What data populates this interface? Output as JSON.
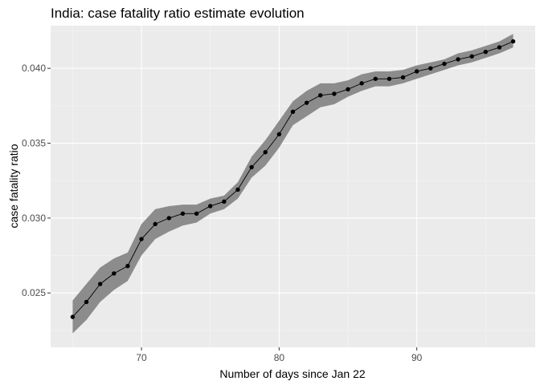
{
  "chart_data": {
    "type": "line",
    "title": "India: case fatality ratio estimate evolution",
    "xlabel": "Number of days since Jan 22",
    "ylabel": "case fatality ratio",
    "x_ticks": [
      70,
      80,
      90
    ],
    "y_ticks": [
      0.025,
      0.03,
      0.035,
      0.04
    ],
    "y_tick_labels": [
      "0.025",
      "0.030",
      "0.035",
      "0.040"
    ],
    "xlim": [
      63.4,
      98.6
    ],
    "ylim": [
      0.02137,
      0.04285
    ],
    "grid": true,
    "legend": "none",
    "colors": {
      "panel": "#ebebeb",
      "grid_major": "#ffffff",
      "grid_minor": "#f5f5f5",
      "ribbon": "#8c8c8c",
      "line": "#000000"
    },
    "series": [
      {
        "x": [
          65,
          66,
          67,
          68,
          69,
          70,
          71,
          72,
          73,
          74,
          75,
          76,
          77,
          78,
          79,
          80,
          81,
          82,
          83,
          84,
          85,
          86,
          87,
          88,
          89,
          90,
          91,
          92,
          93,
          94,
          95,
          96,
          97
        ],
        "y": [
          0.0234,
          0.0244,
          0.0256,
          0.0263,
          0.0268,
          0.0286,
          0.0296,
          0.03,
          0.0303,
          0.0303,
          0.0308,
          0.0311,
          0.0319,
          0.0334,
          0.0344,
          0.0356,
          0.0371,
          0.0377,
          0.0382,
          0.0383,
          0.0386,
          0.039,
          0.0393,
          0.0393,
          0.0394,
          0.0398,
          0.04,
          0.0403,
          0.0406,
          0.0408,
          0.0411,
          0.0414,
          0.0418
        ],
        "lower": [
          0.0223,
          0.0232,
          0.0244,
          0.0252,
          0.0258,
          0.0275,
          0.0286,
          0.0291,
          0.0295,
          0.0297,
          0.0303,
          0.0306,
          0.0313,
          0.0327,
          0.0335,
          0.0347,
          0.0362,
          0.0368,
          0.0374,
          0.0376,
          0.0381,
          0.0385,
          0.0388,
          0.0388,
          0.039,
          0.0393,
          0.0396,
          0.0399,
          0.0402,
          0.0404,
          0.0407,
          0.041,
          0.0414
        ],
        "upper": [
          0.0245,
          0.0256,
          0.0267,
          0.0273,
          0.0277,
          0.0296,
          0.0306,
          0.0308,
          0.0309,
          0.0309,
          0.0313,
          0.0315,
          0.0324,
          0.0341,
          0.0352,
          0.0365,
          0.0378,
          0.0385,
          0.039,
          0.039,
          0.0392,
          0.0396,
          0.0398,
          0.0398,
          0.0399,
          0.0402,
          0.0404,
          0.0406,
          0.041,
          0.0412,
          0.0415,
          0.0418,
          0.0423
        ]
      }
    ]
  }
}
